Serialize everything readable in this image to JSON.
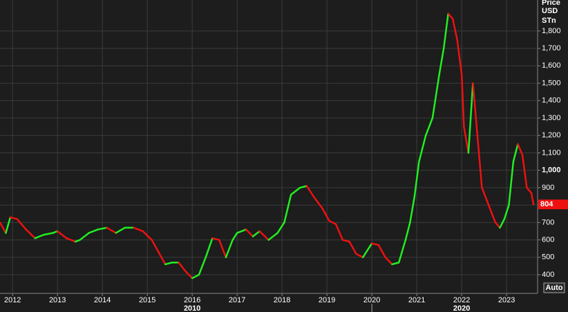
{
  "chart_data": {
    "type": "line",
    "axis_title": [
      "Price",
      "USD",
      "STn"
    ],
    "last_value_label": "804",
    "button": "Auto",
    "decade_labels": [
      {
        "value": 2016,
        "label": "2010"
      },
      {
        "value": 2022,
        "label": "2020"
      }
    ],
    "up_color": "#22ee22",
    "down_color": "#ee1111",
    "grid": true,
    "xlim": [
      2011.72,
      2023.69
    ],
    "ylim": [
      293,
      1978
    ],
    "xticks": [
      2012,
      2013,
      2014,
      2015,
      2016,
      2017,
      2018,
      2019,
      2020,
      2021,
      2022,
      2023
    ],
    "yticks": [
      400,
      500,
      600,
      700,
      800,
      900,
      {
        "value": 1000,
        "label": "1,000"
      },
      {
        "value": 1100,
        "label": "1,100"
      },
      {
        "value": 1200,
        "label": "1,200"
      },
      {
        "value": 1300,
        "label": "1,300"
      },
      {
        "value": 1400,
        "label": "1,400"
      },
      {
        "value": 1500,
        "label": "1,500"
      },
      {
        "value": 1600,
        "label": "1,600"
      },
      {
        "value": 1700,
        "label": "1,700"
      },
      {
        "value": 1800,
        "label": "1,800"
      }
    ],
    "x": [
      2011.72,
      2011.85,
      2011.95,
      2012.1,
      2012.3,
      2012.5,
      2012.7,
      2012.9,
      2013.0,
      2013.2,
      2013.4,
      2013.5,
      2013.7,
      2013.9,
      2014.1,
      2014.3,
      2014.5,
      2014.7,
      2014.9,
      2015.1,
      2015.25,
      2015.4,
      2015.55,
      2015.7,
      2015.85,
      2016.0,
      2016.15,
      2016.3,
      2016.45,
      2016.6,
      2016.75,
      2016.9,
      2017.0,
      2017.2,
      2017.35,
      2017.5,
      2017.7,
      2017.9,
      2018.05,
      2018.2,
      2018.4,
      2018.55,
      2018.7,
      2018.9,
      2019.05,
      2019.2,
      2019.35,
      2019.5,
      2019.65,
      2019.8,
      2020.0,
      2020.15,
      2020.3,
      2020.45,
      2020.6,
      2020.75,
      2020.85,
      2020.95,
      2021.05,
      2021.2,
      2021.35,
      2021.5,
      2021.6,
      2021.7,
      2021.8,
      2021.9,
      2022.0,
      2022.05,
      2022.15,
      2022.25,
      2022.35,
      2022.45,
      2022.6,
      2022.75,
      2022.85,
      2022.95,
      2023.05,
      2023.15,
      2023.25,
      2023.35,
      2023.45,
      2023.55,
      2023.6
    ],
    "values": [
      700,
      640,
      730,
      720,
      660,
      610,
      630,
      640,
      650,
      610,
      590,
      600,
      640,
      660,
      670,
      640,
      670,
      670,
      650,
      600,
      530,
      460,
      470,
      470,
      420,
      380,
      400,
      500,
      610,
      600,
      500,
      600,
      640,
      660,
      620,
      650,
      600,
      640,
      700,
      860,
      900,
      910,
      850,
      780,
      710,
      690,
      600,
      590,
      520,
      500,
      580,
      570,
      500,
      460,
      470,
      600,
      700,
      850,
      1050,
      1200,
      1300,
      1550,
      1700,
      1900,
      1870,
      1750,
      1550,
      1250,
      1100,
      1500,
      1200,
      900,
      800,
      700,
      670,
      720,
      800,
      1050,
      1150,
      1090,
      900,
      870,
      804
    ]
  }
}
